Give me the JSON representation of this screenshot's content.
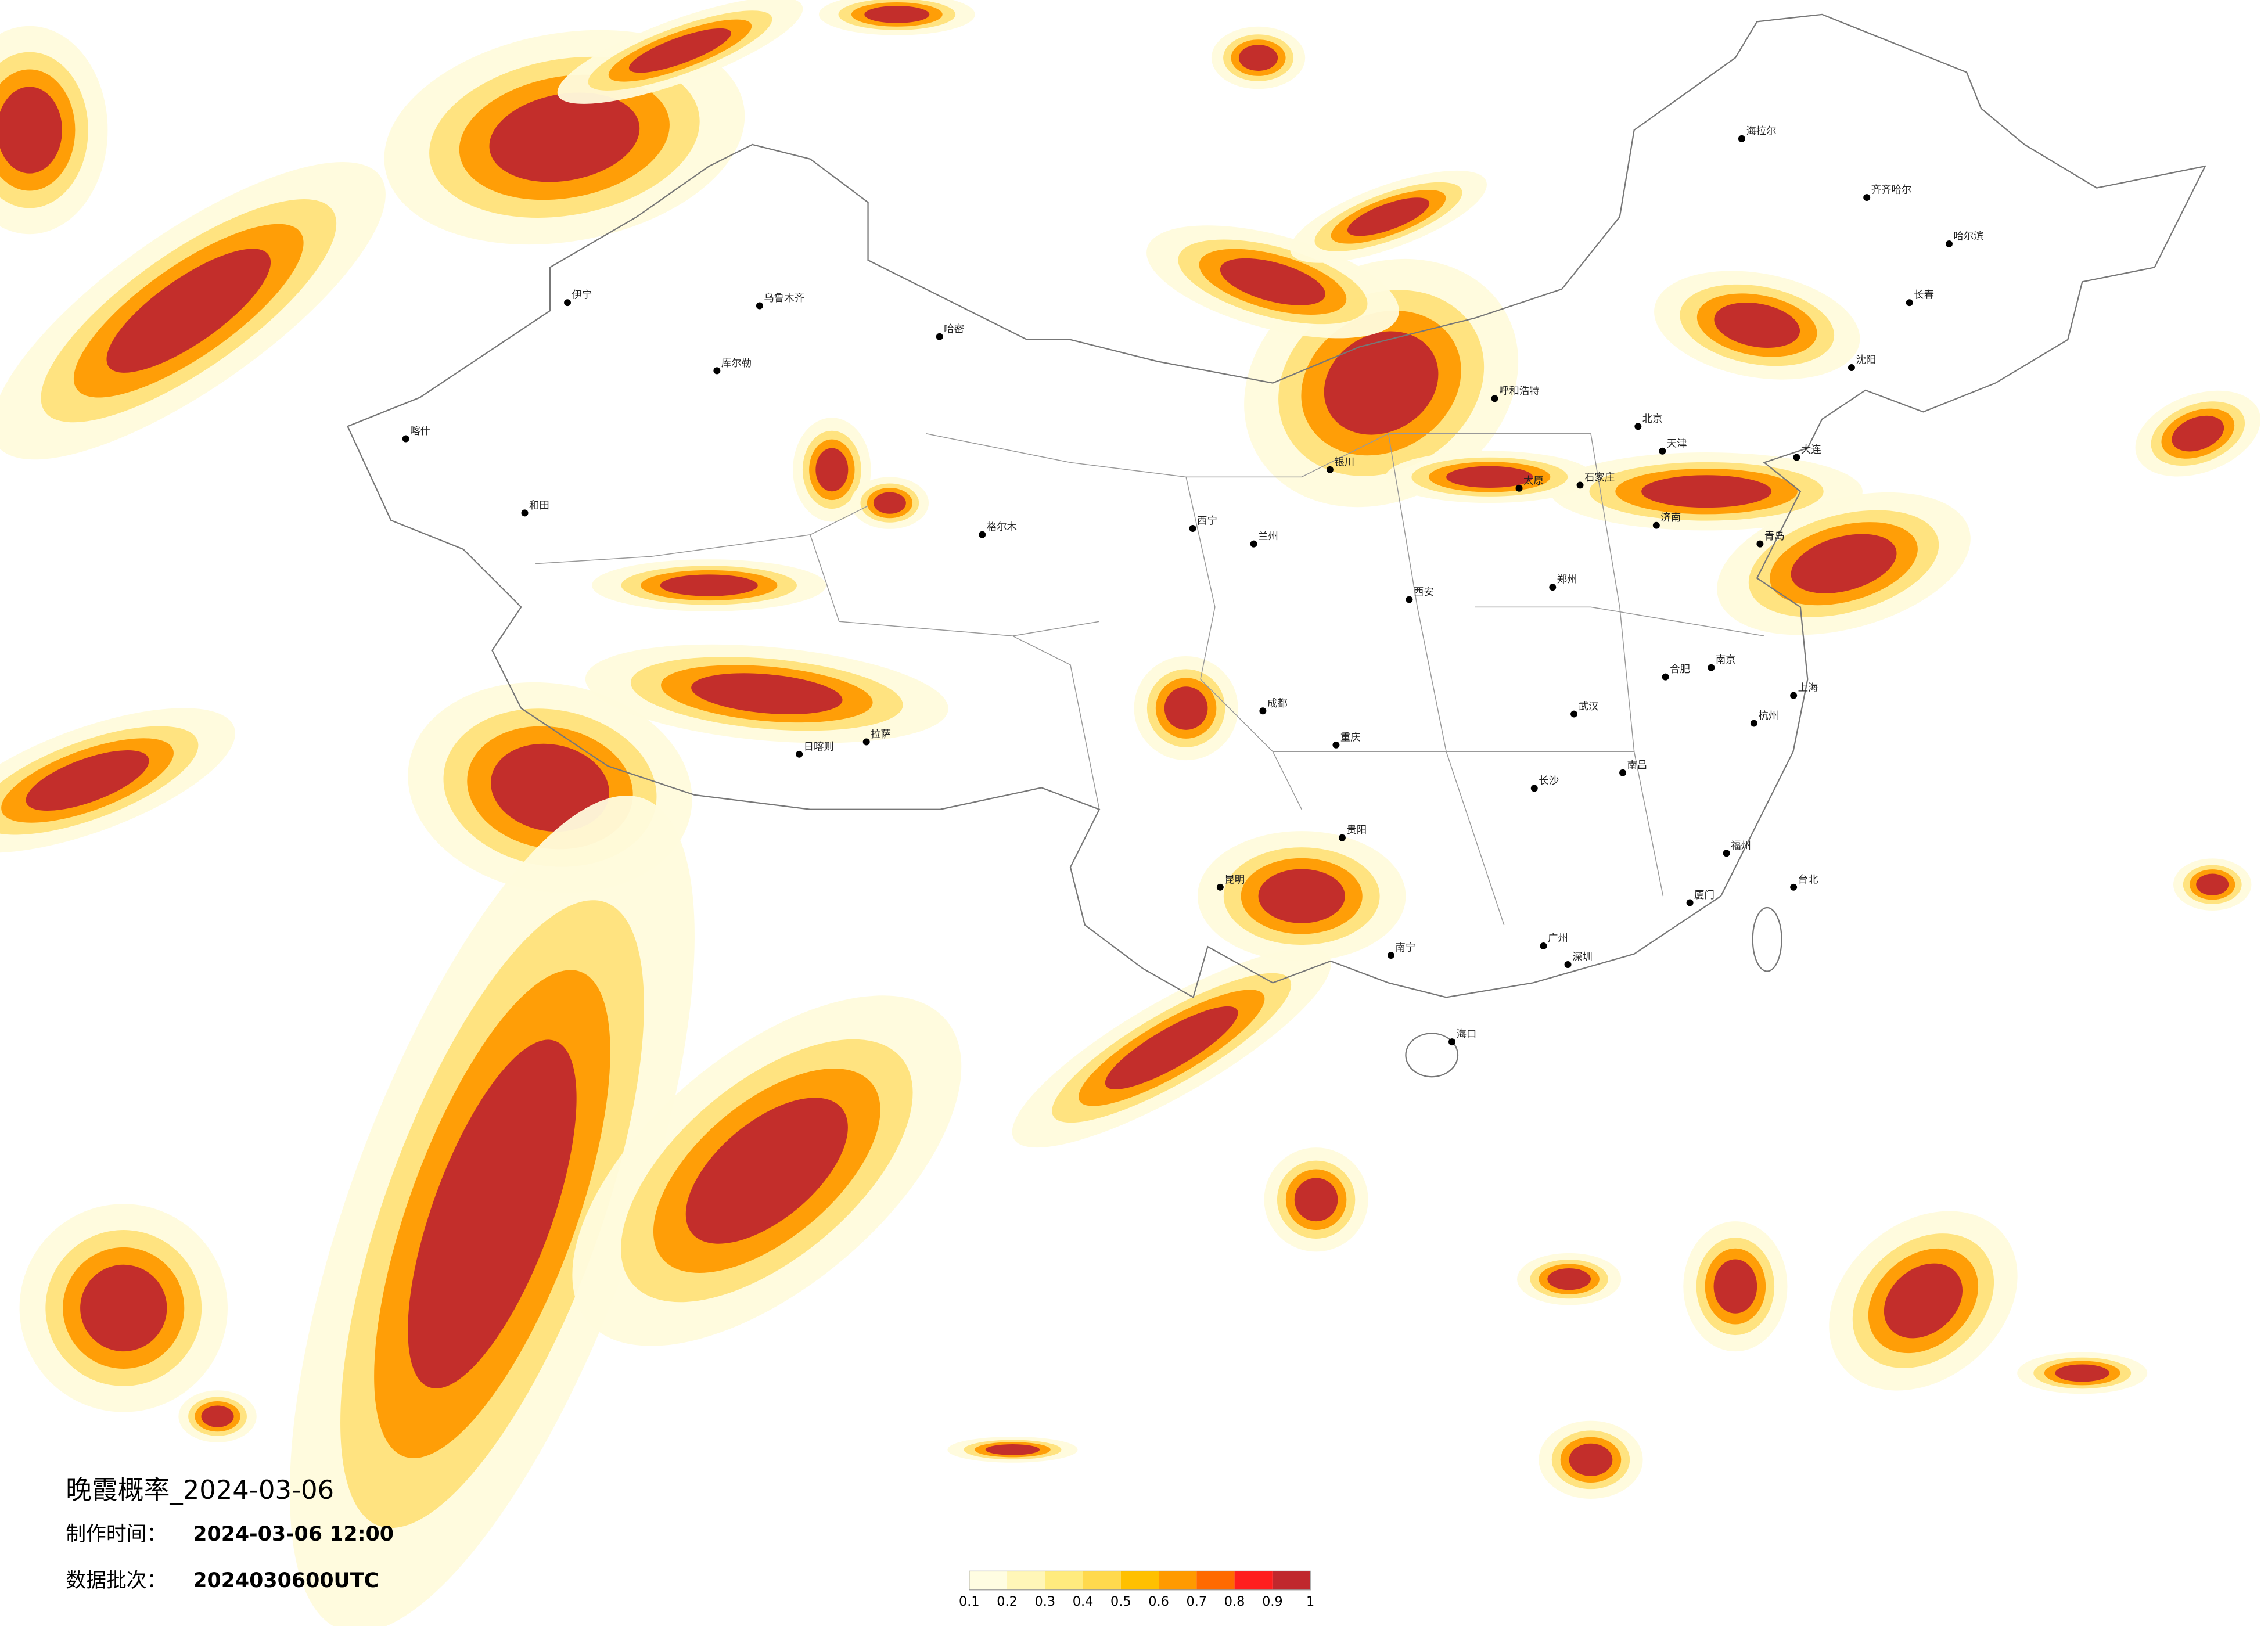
{
  "header": {
    "title": "晚霞概率_2024-03-06",
    "made_time_label": "制作时间：",
    "made_time": "2024-03-06 12:00",
    "batch_label": "数据批次：",
    "batch": "2024030600UTC"
  },
  "colorbar": {
    "ticks": [
      0.1,
      0.2,
      0.3,
      0.4,
      0.5,
      0.6,
      0.7,
      0.8,
      0.9,
      1
    ],
    "colors": [
      "#fffde2",
      "#fff6b8",
      "#ffeb7e",
      "#ffd94d",
      "#ffc000",
      "#ff9a00",
      "#ff6a00",
      "#ff1e1e",
      "#c0282d"
    ]
  },
  "cities": [
    {
      "name": "北京",
      "lon": 116.4,
      "lat": 39.9
    },
    {
      "name": "天津",
      "lon": 117.2,
      "lat": 39.1
    },
    {
      "name": "石家庄",
      "lon": 114.5,
      "lat": 38.0
    },
    {
      "name": "太原",
      "lon": 112.5,
      "lat": 37.9
    },
    {
      "name": "呼和浩特",
      "lon": 111.7,
      "lat": 40.8
    },
    {
      "name": "沈阳",
      "lon": 123.4,
      "lat": 41.8
    },
    {
      "name": "长春",
      "lon": 125.3,
      "lat": 43.9
    },
    {
      "name": "哈尔滨",
      "lon": 126.6,
      "lat": 45.8
    },
    {
      "name": "上海",
      "lon": 121.5,
      "lat": 31.2
    },
    {
      "name": "南京",
      "lon": 118.8,
      "lat": 32.1
    },
    {
      "name": "杭州",
      "lon": 120.2,
      "lat": 30.3
    },
    {
      "name": "合肥",
      "lon": 117.3,
      "lat": 31.8
    },
    {
      "name": "福州",
      "lon": 119.3,
      "lat": 26.1
    },
    {
      "name": "南昌",
      "lon": 115.9,
      "lat": 28.7
    },
    {
      "name": "济南",
      "lon": 117.0,
      "lat": 36.7
    },
    {
      "name": "郑州",
      "lon": 113.6,
      "lat": 34.7
    },
    {
      "name": "武汉",
      "lon": 114.3,
      "lat": 30.6
    },
    {
      "name": "长沙",
      "lon": 113.0,
      "lat": 28.2
    },
    {
      "name": "广州",
      "lon": 113.3,
      "lat": 23.1
    },
    {
      "name": "南宁",
      "lon": 108.3,
      "lat": 22.8
    },
    {
      "name": "海口",
      "lon": 110.3,
      "lat": 20.0
    },
    {
      "name": "成都",
      "lon": 104.1,
      "lat": 30.7
    },
    {
      "name": "重庆",
      "lon": 106.5,
      "lat": 29.6
    },
    {
      "name": "贵阳",
      "lon": 106.7,
      "lat": 26.6
    },
    {
      "name": "昆明",
      "lon": 102.7,
      "lat": 25.0
    },
    {
      "name": "拉萨",
      "lon": 91.1,
      "lat": 29.7
    },
    {
      "name": "西安",
      "lon": 108.9,
      "lat": 34.3
    },
    {
      "name": "兰州",
      "lon": 103.8,
      "lat": 36.1
    },
    {
      "name": "西宁",
      "lon": 101.8,
      "lat": 36.6
    },
    {
      "name": "银川",
      "lon": 106.3,
      "lat": 38.5
    },
    {
      "name": "乌鲁木齐",
      "lon": 87.6,
      "lat": 43.8
    },
    {
      "name": "台北",
      "lon": 121.5,
      "lat": 25.0
    },
    {
      "name": "喀什",
      "lon": 76.0,
      "lat": 39.5
    },
    {
      "name": "和田",
      "lon": 79.9,
      "lat": 37.1
    },
    {
      "name": "伊宁",
      "lon": 81.3,
      "lat": 43.9
    },
    {
      "name": "哈密",
      "lon": 93.5,
      "lat": 42.8
    },
    {
      "name": "库尔勒",
      "lon": 86.2,
      "lat": 41.7
    },
    {
      "name": "海拉尔",
      "lon": 119.8,
      "lat": 49.2
    },
    {
      "name": "齐齐哈尔",
      "lon": 123.9,
      "lat": 47.3
    },
    {
      "name": "大连",
      "lon": 121.6,
      "lat": 38.9
    },
    {
      "name": "青岛",
      "lon": 120.4,
      "lat": 36.1
    },
    {
      "name": "厦门",
      "lon": 118.1,
      "lat": 24.5
    },
    {
      "name": "深圳",
      "lon": 114.1,
      "lat": 22.5
    },
    {
      "name": "格尔木",
      "lon": 94.9,
      "lat": 36.4
    },
    {
      "name": "日喀则",
      "lon": 88.9,
      "lat": 29.3
    }
  ]
}
